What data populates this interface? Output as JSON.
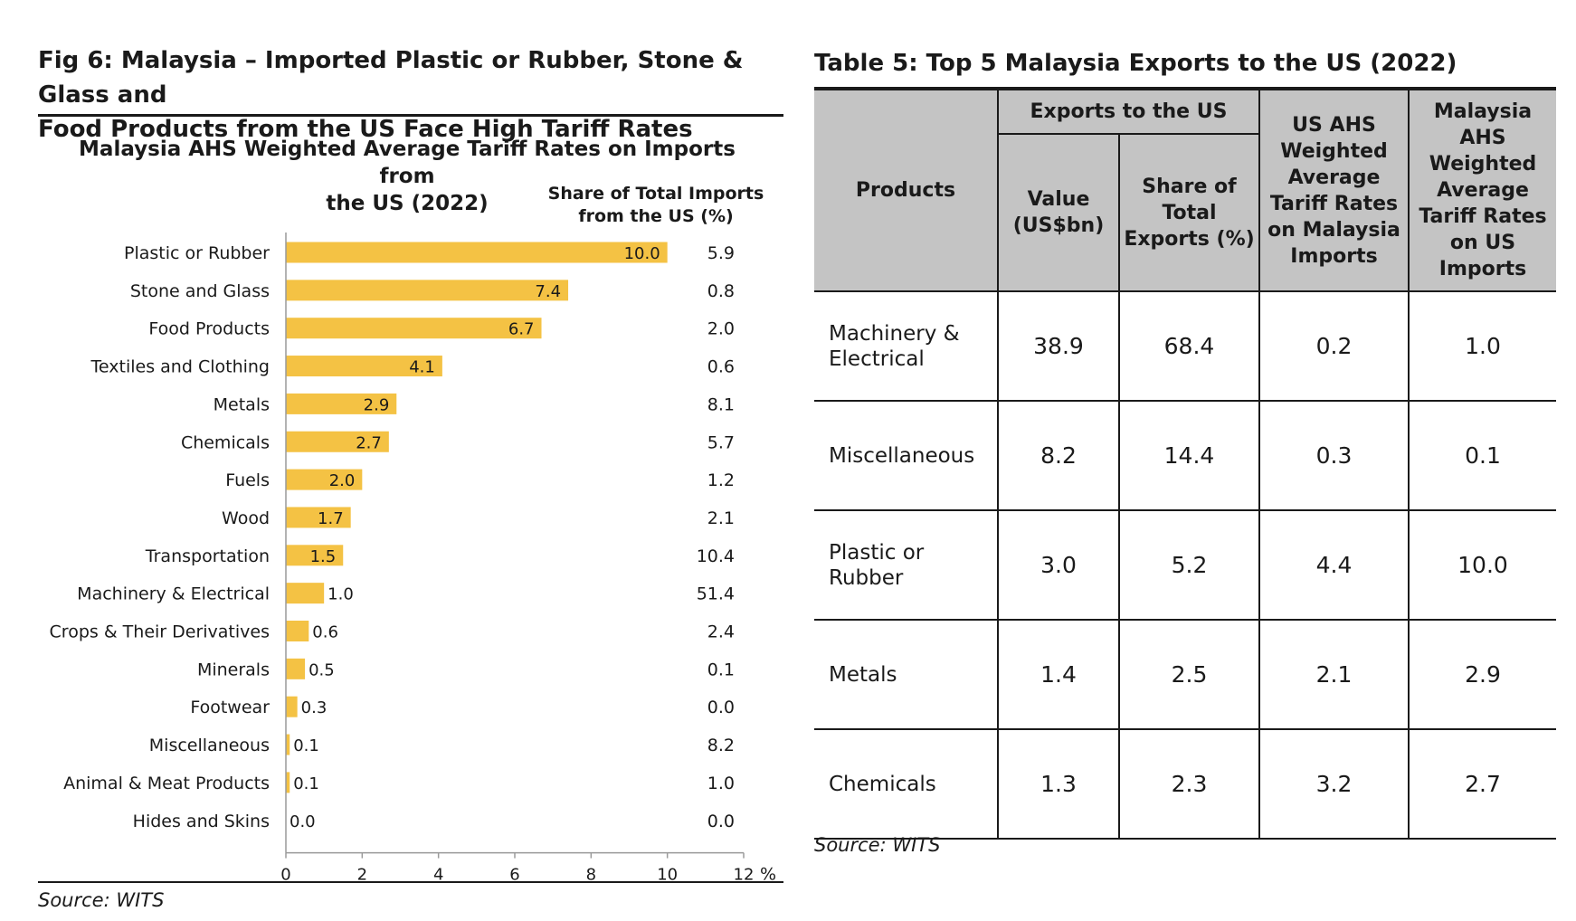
{
  "figure": {
    "title_line1": "Fig 6: Malaysia – Imported Plastic or Rubber, Stone & Glass and",
    "title_line2": "Food Products from the US Face High Tariff Rates",
    "source": "Source: WITS"
  },
  "chart_data": {
    "type": "bar",
    "orientation": "horizontal",
    "title_line1": "Malaysia AHS Weighted Average Tariff Rates on Imports from",
    "title_line2": "the US (2022)",
    "share_header_line1": "Share of Total Imports",
    "share_header_line2": "from the US (%)",
    "x_unit": "%",
    "xlim": [
      0,
      12
    ],
    "xticks": [
      0,
      2,
      4,
      6,
      8,
      10,
      12
    ],
    "bar_color": "#f4c244",
    "categories": [
      "Plastic or Rubber",
      "Stone and Glass",
      "Food Products",
      "Textiles and Clothing",
      "Metals",
      "Chemicals",
      "Fuels",
      "Wood",
      "Transportation",
      "Machinery & Electrical",
      "Crops & Their Derivatives",
      "Minerals",
      "Footwear",
      "Miscellaneous",
      "Animal & Meat Products",
      "Hides and Skins"
    ],
    "values": [
      10.0,
      7.4,
      6.7,
      4.1,
      2.9,
      2.7,
      2.0,
      1.7,
      1.5,
      1.0,
      0.6,
      0.5,
      0.3,
      0.1,
      0.1,
      0.0
    ],
    "value_labels": [
      "10.0",
      "7.4",
      "6.7",
      "4.1",
      "2.9",
      "2.7",
      "2.0",
      "1.7",
      "1.5",
      "1.0",
      "0.6",
      "0.5",
      "0.3",
      "0.1",
      "0.1",
      "0.0"
    ],
    "share_of_imports": [
      "5.9",
      "0.8",
      "2.0",
      "0.6",
      "8.1",
      "5.7",
      "1.2",
      "2.1",
      "10.4",
      "51.4",
      "2.4",
      "0.1",
      "0.0",
      "8.2",
      "1.0",
      "0.0"
    ]
  },
  "table": {
    "title": "Table 5: Top 5 Malaysia Exports to the US (2022)",
    "headers": {
      "products": "Products",
      "exports_group": "Exports to the US",
      "value": "Value (US$bn)",
      "share": "Share of Total Exports (%)",
      "us_ahs": "US AHS Weighted Average Tariff Rates on Malaysia Imports",
      "my_ahs": "Malaysia AHS Weighted Average Tariff Rates on US Imports"
    },
    "rows": [
      {
        "product": "Machinery & Electrical",
        "value": "38.9",
        "share": "68.4",
        "us_ahs": "0.2",
        "my_ahs": "1.0"
      },
      {
        "product": "Miscellaneous",
        "value": "8.2",
        "share": "14.4",
        "us_ahs": "0.3",
        "my_ahs": "0.1"
      },
      {
        "product": "Plastic or Rubber",
        "value": "3.0",
        "share": "5.2",
        "us_ahs": "4.4",
        "my_ahs": "10.0"
      },
      {
        "product": "Metals",
        "value": "1.4",
        "share": "2.5",
        "us_ahs": "2.1",
        "my_ahs": "2.9"
      },
      {
        "product": "Chemicals",
        "value": "1.3",
        "share": "2.3",
        "us_ahs": "3.2",
        "my_ahs": "2.7"
      }
    ],
    "source": "Source: WITS"
  }
}
